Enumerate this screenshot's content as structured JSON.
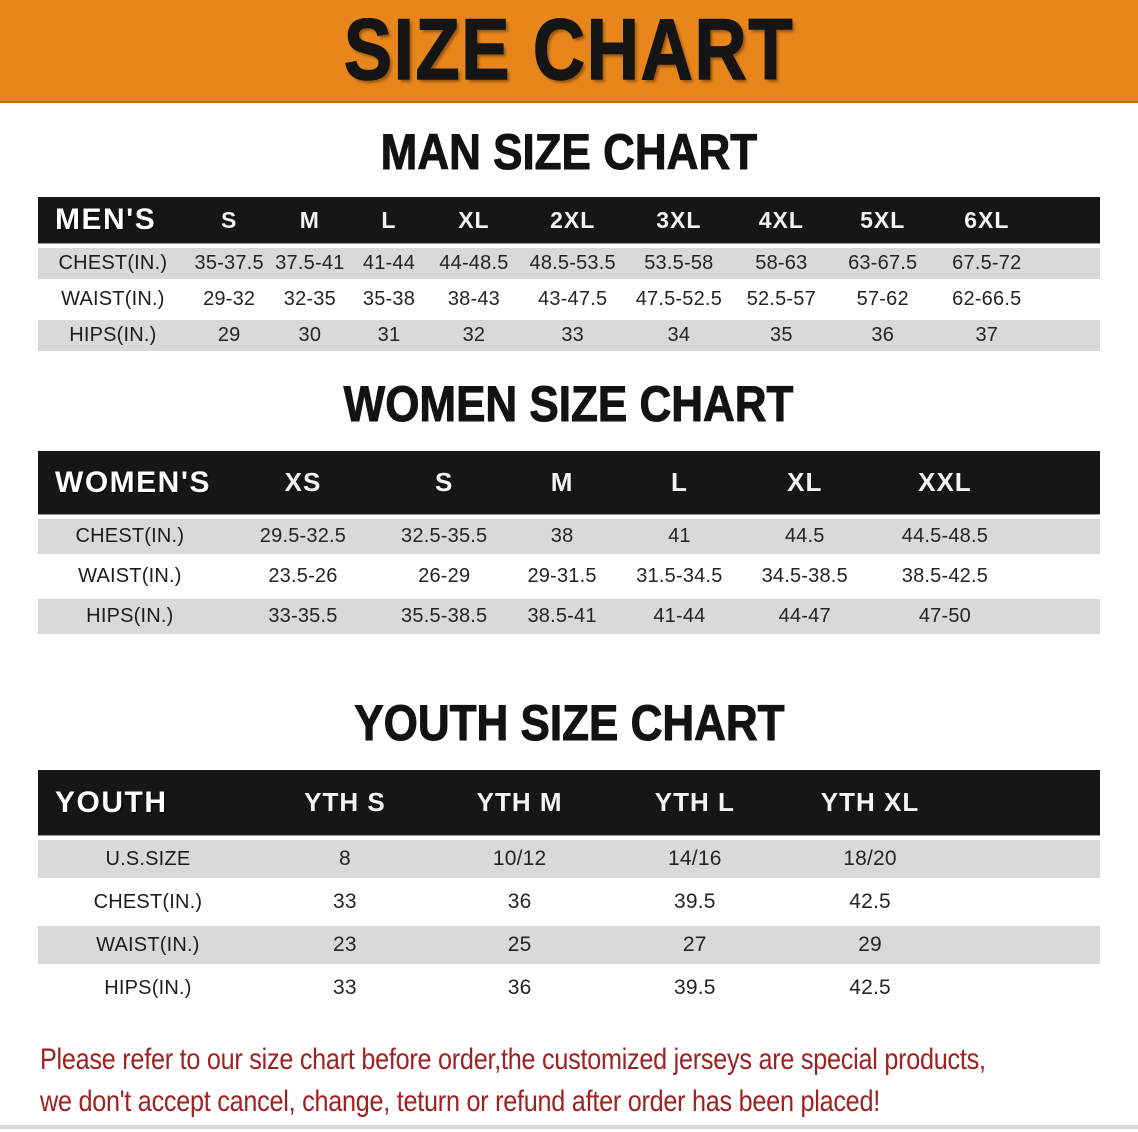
{
  "colors": {
    "banner_bg": "#E8861C",
    "header_bar": "#161616",
    "row_stripe": "#D9D9D9",
    "notice_text": "#A12020"
  },
  "banner": {
    "title": "SIZE CHART"
  },
  "tables": [
    {
      "id": "men",
      "title": "MAN SIZE CHART",
      "header_label": "MEN'S",
      "columns": [
        "S",
        "M",
        "L",
        "XL",
        "2XL",
        "3XL",
        "4XL",
        "5XL",
        "6XL"
      ],
      "rows": [
        {
          "label": "CHEST(IN.)",
          "values": [
            "35-37.5",
            "37.5-41",
            "41-44",
            "44-48.5",
            "48.5-53.5",
            "53.5-58",
            "58-63",
            "63-67.5",
            "67.5-72"
          ]
        },
        {
          "label": "WAIST(IN.)",
          "values": [
            "29-32",
            "32-35",
            "35-38",
            "38-43",
            "43-47.5",
            "47.5-52.5",
            "52.5-57",
            "57-62",
            "62-66.5"
          ]
        },
        {
          "label": "HIPS(IN.)",
          "values": [
            "29",
            "30",
            "31",
            "32",
            "33",
            "34",
            "35",
            "36",
            "37"
          ]
        }
      ]
    },
    {
      "id": "women",
      "title": "WOMEN SIZE CHART",
      "header_label": "WOMEN'S",
      "columns": [
        "XS",
        "S",
        "M",
        "L",
        "XL",
        "XXL"
      ],
      "rows": [
        {
          "label": "CHEST(IN.)",
          "values": [
            "29.5-32.5",
            "32.5-35.5",
            "38",
            "41",
            "44.5",
            "44.5-48.5"
          ]
        },
        {
          "label": "WAIST(IN.)",
          "values": [
            "23.5-26",
            "26-29",
            "29-31.5",
            "31.5-34.5",
            "34.5-38.5",
            "38.5-42.5"
          ]
        },
        {
          "label": "HIPS(IN.)",
          "values": [
            "33-35.5",
            "35.5-38.5",
            "38.5-41",
            "41-44",
            "44-47",
            "47-50"
          ]
        }
      ]
    },
    {
      "id": "youth",
      "title": "YOUTH SIZE CHART",
      "header_label": "YOUTH",
      "columns": [
        "YTH S",
        "YTH M",
        "YTH L",
        "YTH XL"
      ],
      "rows": [
        {
          "label": "U.S.SIZE",
          "values": [
            "8",
            "10/12",
            "14/16",
            "18/20"
          ]
        },
        {
          "label": "CHEST(IN.)",
          "values": [
            "33",
            "36",
            "39.5",
            "42.5"
          ]
        },
        {
          "label": "WAIST(IN.)",
          "values": [
            "23",
            "25",
            "27",
            "29"
          ]
        },
        {
          "label": "HIPS(IN.)",
          "values": [
            "33",
            "36",
            "39.5",
            "42.5"
          ]
        }
      ]
    }
  ],
  "footer": {
    "line1": "Please refer to our size chart before order,the customized jerseys are special products,",
    "line2": "we don't accept cancel, change, teturn or refund after order has been placed!"
  }
}
